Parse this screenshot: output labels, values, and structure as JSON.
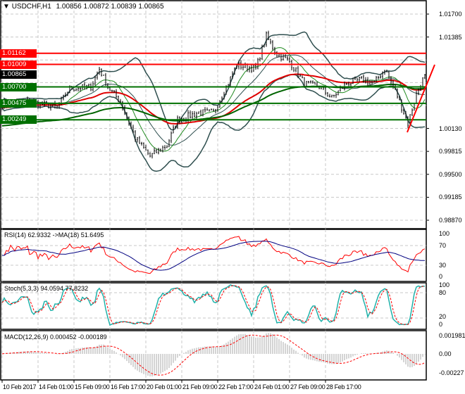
{
  "header": {
    "symbol": "USDCHF,H1",
    "ohlc": "1.00856 1.00872 1.00839 1.00865"
  },
  "price_axis": [
    "1.01700",
    "1.01385",
    "0.99815",
    "0.99500",
    "0.99185",
    "0.98870",
    "1.00130"
  ],
  "price_tags": [
    {
      "label": "1.01162",
      "value": 1.01162,
      "color": "#ff0000"
    },
    {
      "label": "1.01009",
      "value": 1.01009,
      "color": "#ff0000"
    },
    {
      "label": "1.00865",
      "value": 1.00865,
      "color": "#000000"
    },
    {
      "label": "1.00700",
      "value": 1.007,
      "color": "#007000"
    },
    {
      "label": "1.00475",
      "value": 1.00475,
      "color": "#007000"
    },
    {
      "label": "1.00249",
      "value": 1.00249,
      "color": "#007000"
    }
  ],
  "rsi": {
    "label": "RSI(14) 62.9332  ->MA(18) 51.6495",
    "axis": [
      "100",
      "70",
      "30",
      "0"
    ]
  },
  "stoch": {
    "label": "Stoch(5,3,3) 94.0594 77.8232",
    "axis": [
      "100",
      "80",
      "20",
      "0"
    ]
  },
  "macd": {
    "label": "MACD(12,26,9) 0.000452 -0.000189",
    "axis": [
      "0.001981",
      "0.00",
      "-0.00227"
    ]
  },
  "time_axis": [
    "10 Feb 2017",
    "14 Feb 01:00",
    "15 Feb 09:00",
    "16 Feb 17:00",
    "20 Feb 01:00",
    "21 Feb 09:00",
    "22 Feb 17:00",
    "24 Feb 01:00",
    "27 Feb 09:00",
    "28 Feb 17:00"
  ],
  "chart_data": {
    "type": "candlestick",
    "symbol": "USDCHF",
    "timeframe": "H1",
    "ylim": [
      0.9887,
      1.017
    ],
    "close_path": [
      [
        0,
        1.0046
      ],
      [
        12,
        1.005
      ],
      [
        26,
        1.0042
      ],
      [
        32,
        1.0068
      ],
      [
        42,
        1.007
      ],
      [
        46,
        1.0095
      ],
      [
        50,
        1.007
      ],
      [
        56,
        1.005
      ],
      [
        63,
        1.0
      ],
      [
        70,
        0.9975
      ],
      [
        78,
        0.999
      ],
      [
        83,
        1.0025
      ],
      [
        93,
        1.0035
      ],
      [
        100,
        1.0035
      ],
      [
        106,
        1.007
      ],
      [
        111,
        1.01
      ],
      [
        120,
        1.0095
      ],
      [
        125,
        1.014
      ],
      [
        130,
        1.0115
      ],
      [
        136,
        1.0105
      ],
      [
        143,
        1.0075
      ],
      [
        150,
        1.007
      ],
      [
        156,
        1.0055
      ],
      [
        163,
        1.0075
      ],
      [
        170,
        1.008
      ],
      [
        176,
        1.0075
      ],
      [
        181,
        1.0095
      ],
      [
        186,
        1.0065
      ],
      [
        192,
        1.002
      ],
      [
        196,
        1.006
      ],
      [
        200,
        1.00865
      ]
    ],
    "levels": {
      "resistance": [
        1.01162,
        1.01009
      ],
      "support": [
        1.007,
        1.00475,
        1.00249
      ]
    },
    "grid": true
  }
}
